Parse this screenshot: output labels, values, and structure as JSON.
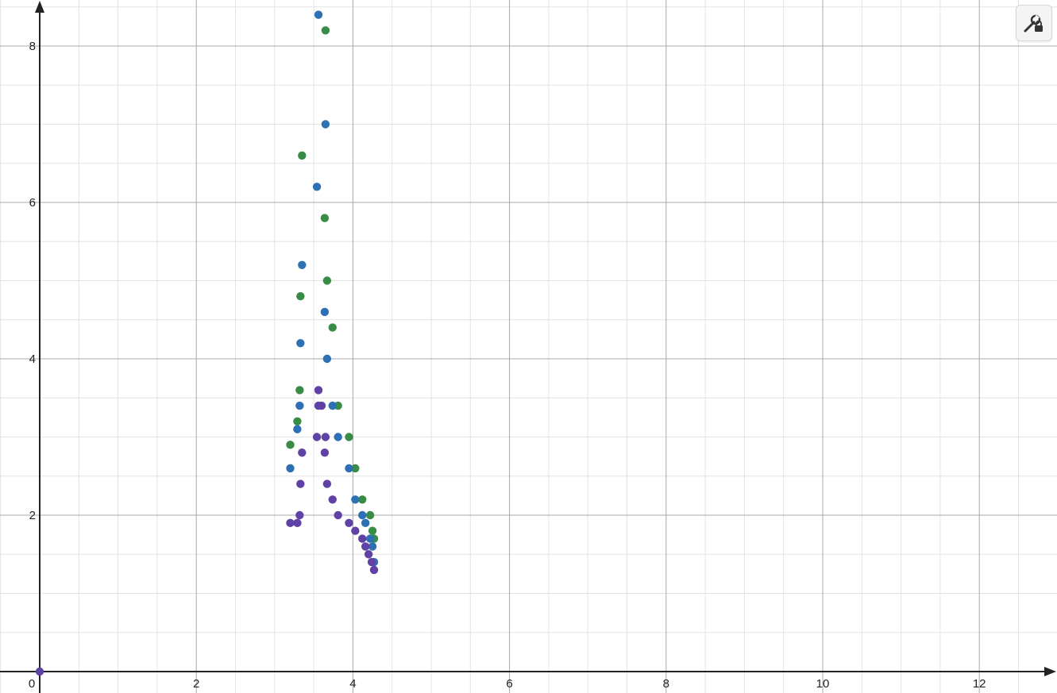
{
  "settings_button": {
    "icon": "wrench-lock-icon"
  },
  "chart_data": {
    "type": "scatter",
    "xlim": [
      0,
      13
    ],
    "ylim": [
      0,
      8.6
    ],
    "grid": true,
    "x_ticks": [
      "0",
      "2",
      "4",
      "6",
      "8",
      "10",
      "12"
    ],
    "y_ticks": [
      "2",
      "4",
      "6",
      "8"
    ],
    "origin_point": {
      "x": 0,
      "y": 0,
      "color": "#6042a6"
    },
    "series": [
      {
        "color": "#388c46",
        "points": [
          [
            3.65,
            8.2
          ],
          [
            3.35,
            6.6
          ],
          [
            3.64,
            5.8
          ],
          [
            3.67,
            5.0
          ],
          [
            3.33,
            4.8
          ],
          [
            3.74,
            4.4
          ],
          [
            3.32,
            3.6
          ],
          [
            3.81,
            3.4
          ],
          [
            3.29,
            3.2
          ],
          [
            3.2,
            2.9
          ],
          [
            3.95,
            3.0
          ],
          [
            4.03,
            2.6
          ],
          [
            4.12,
            2.2
          ],
          [
            4.22,
            2.0
          ],
          [
            4.25,
            1.8
          ],
          [
            4.27,
            1.7
          ]
        ]
      },
      {
        "color": "#2d70b3",
        "points": [
          [
            3.56,
            8.4
          ],
          [
            3.65,
            7.0
          ],
          [
            3.54,
            6.2
          ],
          [
            3.35,
            5.2
          ],
          [
            3.64,
            4.6
          ],
          [
            3.33,
            4.2
          ],
          [
            3.67,
            4.0
          ],
          [
            3.32,
            3.4
          ],
          [
            3.74,
            3.4
          ],
          [
            3.29,
            3.1
          ],
          [
            3.81,
            3.0
          ],
          [
            3.2,
            2.6
          ],
          [
            3.95,
            2.6
          ],
          [
            4.03,
            2.2
          ],
          [
            4.12,
            2.0
          ],
          [
            4.16,
            1.9
          ],
          [
            4.22,
            1.7
          ],
          [
            4.25,
            1.6
          ],
          [
            4.27,
            1.4
          ]
        ]
      },
      {
        "color": "#6042a6",
        "points": [
          [
            3.56,
            3.6
          ],
          [
            3.56,
            3.4
          ],
          [
            3.6,
            3.4
          ],
          [
            3.54,
            3.0
          ],
          [
            3.65,
            3.0
          ],
          [
            3.35,
            2.8
          ],
          [
            3.64,
            2.8
          ],
          [
            3.33,
            2.4
          ],
          [
            3.67,
            2.4
          ],
          [
            3.74,
            2.2
          ],
          [
            3.32,
            2.0
          ],
          [
            3.81,
            2.0
          ],
          [
            3.2,
            1.9
          ],
          [
            3.29,
            1.9
          ],
          [
            3.95,
            1.9
          ],
          [
            4.03,
            1.8
          ],
          [
            4.12,
            1.7
          ],
          [
            4.16,
            1.6
          ],
          [
            4.2,
            1.5
          ],
          [
            4.24,
            1.4
          ],
          [
            4.27,
            1.3
          ]
        ]
      }
    ]
  }
}
